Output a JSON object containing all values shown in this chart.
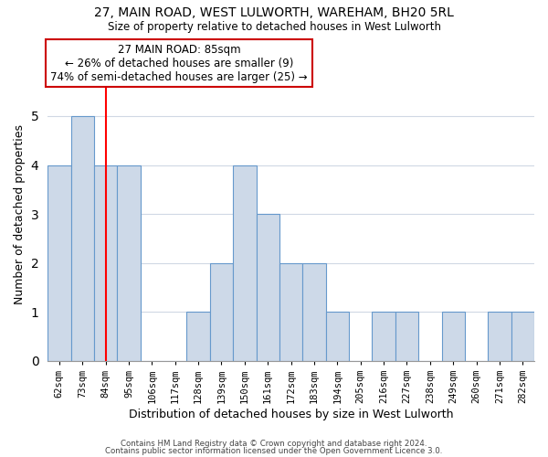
{
  "title": "27, MAIN ROAD, WEST LULWORTH, WAREHAM, BH20 5RL",
  "subtitle": "Size of property relative to detached houses in West Lulworth",
  "xlabel": "Distribution of detached houses by size in West Lulworth",
  "ylabel": "Number of detached properties",
  "categories": [
    "62sqm",
    "73sqm",
    "84sqm",
    "95sqm",
    "106sqm",
    "117sqm",
    "128sqm",
    "139sqm",
    "150sqm",
    "161sqm",
    "172sqm",
    "183sqm",
    "194sqm",
    "205sqm",
    "216sqm",
    "227sqm",
    "238sqm",
    "249sqm",
    "260sqm",
    "271sqm",
    "282sqm"
  ],
  "values": [
    4,
    5,
    4,
    4,
    0,
    0,
    1,
    2,
    4,
    3,
    2,
    2,
    1,
    0,
    1,
    1,
    0,
    1,
    0,
    1,
    1
  ],
  "bar_color": "#cdd9e8",
  "bar_edge_color": "#6699cc",
  "red_line_index": 2,
  "annotation_line1": "27 MAIN ROAD: 85sqm",
  "annotation_line2": "← 26% of detached houses are smaller (9)",
  "annotation_line3": "74% of semi-detached houses are larger (25) →",
  "annotation_box_edge_color": "#cc0000",
  "ylim": [
    0,
    6
  ],
  "yticks": [
    0,
    1,
    2,
    3,
    4,
    5,
    6
  ],
  "footer_line1": "Contains HM Land Registry data © Crown copyright and database right 2024.",
  "footer_line2": "Contains public sector information licensed under the Open Government Licence 3.0.",
  "background_color": "#ffffff",
  "grid_color": "#d0d8e4"
}
